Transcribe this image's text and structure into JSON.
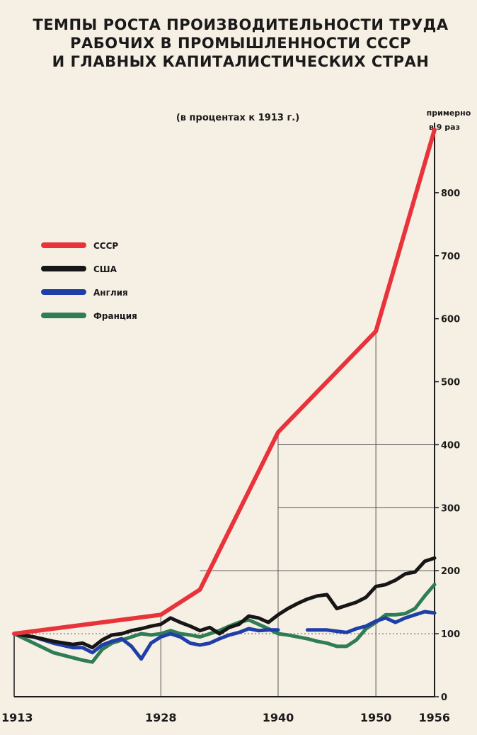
{
  "chart_data": {
    "type": "line",
    "title_lines": [
      "ТЕМПЫ РОСТА ПРОИЗВОДИТЕЛЬНОСТИ ТРУДА",
      "РАБОЧИХ В ПРОМЫШЛЕННОСТИ СССР",
      "И ГЛАВНЫХ КАПИТАЛИСТИЧЕСКИХ СТРАН"
    ],
    "subtitle": "(в процентах к 1913 г.)",
    "annotation_lines": [
      "примерно",
      "в 9 раз"
    ],
    "x_ticks": [
      1913,
      1928,
      1940,
      1950,
      1956
    ],
    "y_ticks": [
      0,
      100,
      200,
      300,
      400,
      500,
      600,
      700,
      800
    ],
    "xlim": [
      1913,
      1956
    ],
    "ylim": [
      0,
      900
    ],
    "legend_position": "left-middle",
    "series": [
      {
        "name": "СССР",
        "color": "#e8333b",
        "points": [
          [
            1913,
            100
          ],
          [
            1928,
            130
          ],
          [
            1932,
            170
          ],
          [
            1940,
            420
          ],
          [
            1950,
            580
          ],
          [
            1956,
            900
          ]
        ]
      },
      {
        "name": "США",
        "color": "#161616",
        "points": [
          [
            1913,
            100
          ],
          [
            1915,
            95
          ],
          [
            1917,
            88
          ],
          [
            1919,
            83
          ],
          [
            1920,
            85
          ],
          [
            1921,
            78
          ],
          [
            1922,
            90
          ],
          [
            1923,
            98
          ],
          [
            1924,
            100
          ],
          [
            1925,
            105
          ],
          [
            1926,
            108
          ],
          [
            1927,
            112
          ],
          [
            1928,
            115
          ],
          [
            1929,
            125
          ],
          [
            1930,
            118
          ],
          [
            1931,
            112
          ],
          [
            1932,
            105
          ],
          [
            1933,
            110
          ],
          [
            1934,
            100
          ],
          [
            1935,
            110
          ],
          [
            1936,
            115
          ],
          [
            1937,
            128
          ],
          [
            1938,
            125
          ],
          [
            1939,
            118
          ],
          [
            1940,
            130
          ],
          [
            1941,
            140
          ],
          [
            1942,
            148
          ],
          [
            1943,
            155
          ],
          [
            1944,
            160
          ],
          [
            1945,
            162
          ],
          [
            1946,
            140
          ],
          [
            1947,
            145
          ],
          [
            1948,
            150
          ],
          [
            1949,
            158
          ],
          [
            1950,
            175
          ],
          [
            1951,
            178
          ],
          [
            1952,
            185
          ],
          [
            1953,
            195
          ],
          [
            1954,
            198
          ],
          [
            1955,
            215
          ],
          [
            1956,
            220
          ]
        ]
      },
      {
        "name": "Англия",
        "color": "#1f3ea8",
        "points": [
          [
            1913,
            100
          ],
          [
            1915,
            95
          ],
          [
            1917,
            85
          ],
          [
            1919,
            78
          ],
          [
            1920,
            78
          ],
          [
            1921,
            70
          ],
          [
            1922,
            82
          ],
          [
            1923,
            88
          ],
          [
            1924,
            92
          ],
          [
            1925,
            80
          ],
          [
            1926,
            60
          ],
          [
            1927,
            85
          ],
          [
            1928,
            95
          ],
          [
            1929,
            100
          ],
          [
            1930,
            95
          ],
          [
            1931,
            85
          ],
          [
            1932,
            82
          ],
          [
            1933,
            85
          ],
          [
            1934,
            92
          ],
          [
            1935,
            98
          ],
          [
            1936,
            102
          ],
          [
            1937,
            108
          ],
          [
            1938,
            105
          ],
          [
            1939,
            106
          ],
          [
            1940,
            106
          ],
          [
            1941,
            null
          ],
          [
            1943,
            106
          ],
          [
            1944,
            106
          ],
          [
            1945,
            106
          ],
          [
            1946,
            104
          ],
          [
            1947,
            102
          ],
          [
            1948,
            108
          ],
          [
            1949,
            112
          ],
          [
            1950,
            120
          ],
          [
            1951,
            125
          ],
          [
            1952,
            118
          ],
          [
            1953,
            125
          ],
          [
            1954,
            130
          ],
          [
            1955,
            135
          ],
          [
            1956,
            133
          ]
        ]
      },
      {
        "name": "Франция",
        "color": "#2f7d54",
        "points": [
          [
            1913,
            100
          ],
          [
            1915,
            85
          ],
          [
            1917,
            70
          ],
          [
            1919,
            62
          ],
          [
            1920,
            58
          ],
          [
            1921,
            55
          ],
          [
            1922,
            75
          ],
          [
            1923,
            85
          ],
          [
            1924,
            90
          ],
          [
            1925,
            95
          ],
          [
            1926,
            100
          ],
          [
            1927,
            98
          ],
          [
            1928,
            100
          ],
          [
            1929,
            105
          ],
          [
            1930,
            100
          ],
          [
            1931,
            98
          ],
          [
            1932,
            95
          ],
          [
            1933,
            100
          ],
          [
            1934,
            105
          ],
          [
            1935,
            112
          ],
          [
            1936,
            118
          ],
          [
            1937,
            122
          ],
          [
            1938,
            115
          ],
          [
            1939,
            108
          ],
          [
            1940,
            100
          ],
          [
            1941,
            98
          ],
          [
            1942,
            95
          ],
          [
            1943,
            92
          ],
          [
            1944,
            88
          ],
          [
            1945,
            85
          ],
          [
            1946,
            80
          ],
          [
            1947,
            80
          ],
          [
            1948,
            90
          ],
          [
            1949,
            108
          ],
          [
            1950,
            118
          ],
          [
            1951,
            130
          ],
          [
            1952,
            130
          ],
          [
            1953,
            132
          ],
          [
            1954,
            140
          ],
          [
            1955,
            160
          ],
          [
            1956,
            178
          ]
        ]
      }
    ]
  }
}
